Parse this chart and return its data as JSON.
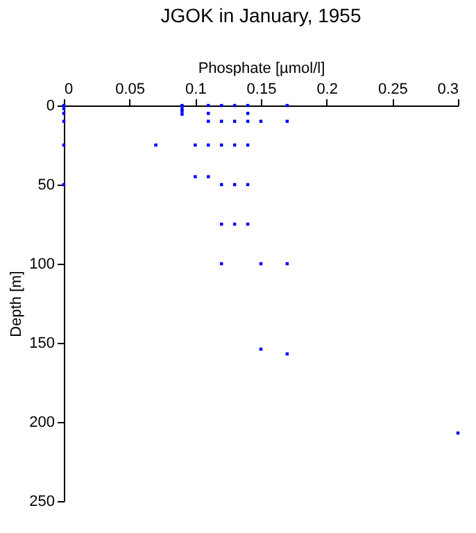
{
  "chart_data": {
    "type": "scatter",
    "title": "JGOK in January, 1955",
    "xlabel": "Phosphate [µmol/l]",
    "ylabel": "Depth [m]",
    "x": [
      0,
      0,
      0,
      0,
      0,
      0,
      0.09,
      0.09,
      0.09,
      0.09,
      0.11,
      0.11,
      0.11,
      0.11,
      0.12,
      0.12,
      0.12,
      0.13,
      0.13,
      0.13,
      0.14,
      0.14,
      0.14,
      0.14,
      0.15,
      0.17,
      0.17,
      0.07,
      0.1,
      0.1,
      0.11,
      0.12,
      0.13,
      0.14,
      0.12,
      0.13,
      0.14,
      0.12,
      0.15,
      0.17,
      0.15,
      0.17,
      0.3
    ],
    "series": [
      {
        "color": "#0000ff",
        "values": [
          0,
          2,
          5,
          10,
          25,
          50,
          0,
          2,
          3.5,
          5.5,
          0,
          5,
          10,
          25,
          0,
          10,
          25,
          0,
          10,
          25,
          0,
          5,
          10,
          25,
          10,
          0,
          10,
          25,
          25,
          45,
          45,
          50,
          50,
          50,
          75,
          75,
          75,
          100,
          100,
          100,
          154,
          157,
          207
        ]
      }
    ],
    "xlim": [
      0,
      0.3
    ],
    "xticks": [
      0,
      0.05,
      0.1,
      0.15,
      0.2,
      0.25,
      0.3
    ],
    "ylim": [
      250,
      0
    ],
    "yticks": [
      0,
      50,
      100,
      150,
      200,
      250
    ],
    "marker": "square",
    "grid": false,
    "legend": false
  }
}
